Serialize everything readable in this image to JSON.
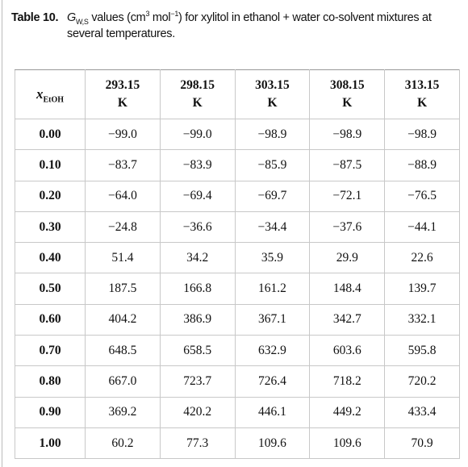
{
  "caption": {
    "label": "Table 10.",
    "symbol": "G",
    "symbol_subscript": "W,S",
    "text_1": " values (cm",
    "sup_1": "3",
    "text_2": " mol",
    "sup_2": "−1",
    "text_3": ") for xylitol in ethanol + water co-solvent mixtures at several temperatures."
  },
  "table": {
    "header": {
      "row_label_symbol": "x",
      "row_label_subscript": "EtOH",
      "columns": [
        "293.15\nK",
        "298.15\nK",
        "303.15\nK",
        "308.15\nK",
        "313.15\nK"
      ]
    },
    "rows": [
      [
        "0.00",
        "−99.0",
        "−99.0",
        "−98.9",
        "−98.9",
        "−98.9"
      ],
      [
        "0.10",
        "−83.7",
        "−83.9",
        "−85.9",
        "−87.5",
        "−88.9"
      ],
      [
        "0.20",
        "−64.0",
        "−69.4",
        "−69.7",
        "−72.1",
        "−76.5"
      ],
      [
        "0.30",
        "−24.8",
        "−36.6",
        "−34.4",
        "−37.6",
        "−44.1"
      ],
      [
        "0.40",
        "51.4",
        "34.2",
        "35.9",
        "29.9",
        "22.6"
      ],
      [
        "0.50",
        "187.5",
        "166.8",
        "161.2",
        "148.4",
        "139.7"
      ],
      [
        "0.60",
        "404.2",
        "386.9",
        "367.1",
        "342.7",
        "332.1"
      ],
      [
        "0.70",
        "648.5",
        "658.5",
        "632.9",
        "603.6",
        "595.8"
      ],
      [
        "0.80",
        "667.0",
        "723.7",
        "726.4",
        "718.2",
        "720.2"
      ],
      [
        "0.90",
        "369.2",
        "420.2",
        "446.1",
        "449.2",
        "433.4"
      ],
      [
        "1.00",
        "60.2",
        "77.3",
        "109.6",
        "109.6",
        "70.9"
      ]
    ]
  }
}
